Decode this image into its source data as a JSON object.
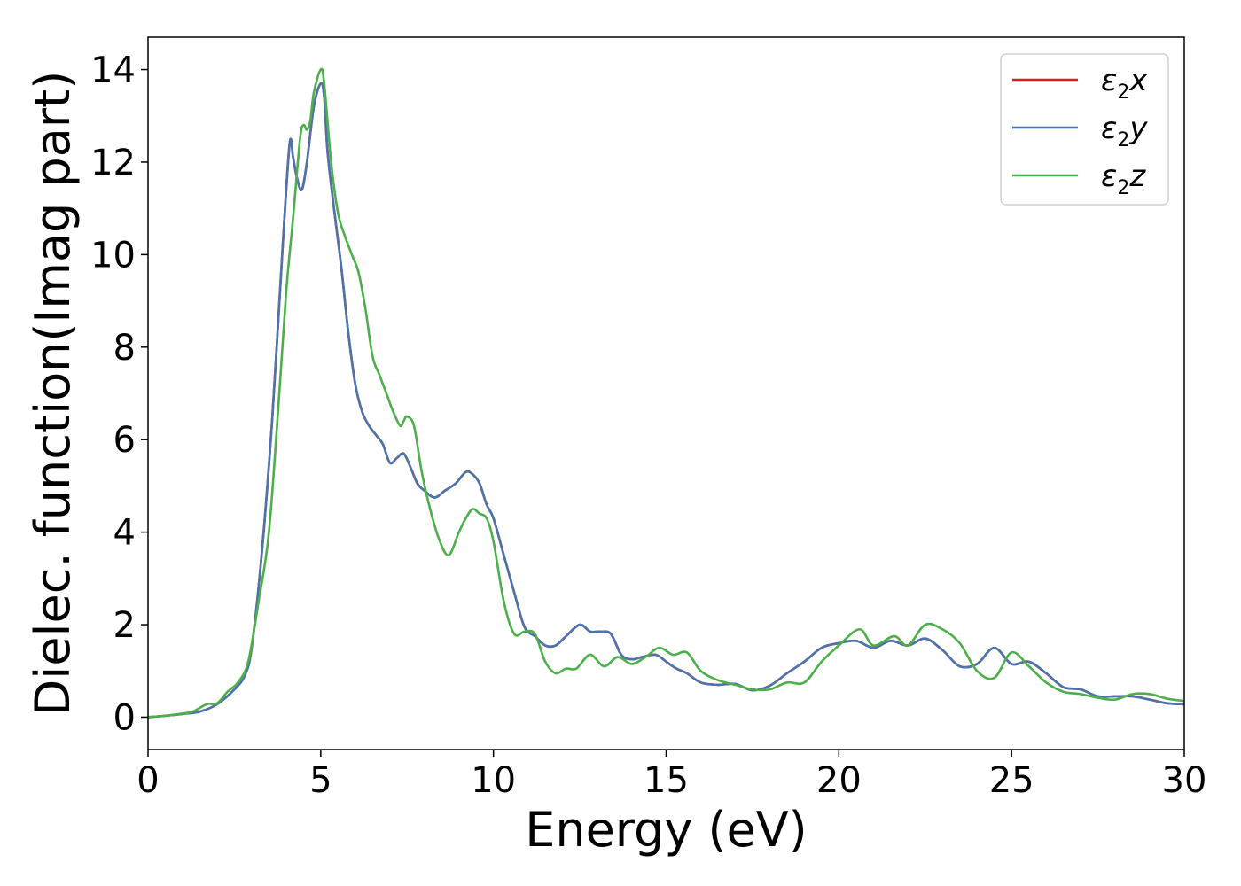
{
  "chart_data": {
    "type": "line",
    "xlabel": "Energy (eV)",
    "ylabel": "Dielec. function(Imag part)",
    "xlim": [
      0,
      30
    ],
    "ylim": [
      -0.7,
      14.7
    ],
    "x_ticks": [
      "0",
      "5",
      "10",
      "15",
      "20",
      "25",
      "30"
    ],
    "y_ticks": [
      "0",
      "2",
      "4",
      "6",
      "8",
      "10",
      "12",
      "14"
    ],
    "grid": false,
    "legend_position": "top-right",
    "series": [
      {
        "name": "ε2x",
        "legend": {
          "base": "ε",
          "sub": "2",
          "axis": "x"
        },
        "color": "#e41a1c",
        "x": [
          0,
          0.5,
          1,
          1.5,
          2,
          2.5,
          2.8,
          3,
          3.3,
          3.6,
          3.9,
          4.1,
          4.2,
          4.3,
          4.45,
          4.6,
          4.8,
          5.0,
          5.1,
          5.2,
          5.4,
          5.6,
          5.8,
          6,
          6.2,
          6.4,
          6.6,
          6.8,
          7,
          7.2,
          7.4,
          7.6,
          7.8,
          8,
          8.3,
          8.6,
          8.9,
          9.2,
          9.4,
          9.6,
          9.8,
          10,
          10.3,
          10.6,
          10.9,
          11.2,
          11.5,
          11.8,
          12.1,
          12.5,
          12.8,
          13.1,
          13.4,
          13.7,
          14,
          14.3,
          14.7,
          15,
          15.3,
          15.6,
          16,
          16.5,
          17,
          17.5,
          18,
          18.5,
          19,
          19.5,
          20,
          20.5,
          21,
          21.5,
          22,
          22.5,
          23,
          23.5,
          24,
          24.5,
          25,
          25.5,
          26,
          26.5,
          27,
          27.5,
          28,
          28.5,
          29,
          29.5,
          30
        ],
        "y": [
          0,
          0.03,
          0.07,
          0.12,
          0.28,
          0.6,
          0.9,
          1.5,
          3.6,
          6.5,
          10.2,
          12.4,
          12.1,
          11.7,
          11.4,
          12.0,
          13.2,
          13.7,
          13.4,
          12.2,
          10.9,
          9.7,
          8.3,
          7.2,
          6.6,
          6.3,
          6.1,
          5.9,
          5.5,
          5.6,
          5.7,
          5.4,
          5.05,
          4.9,
          4.75,
          4.9,
          5.05,
          5.3,
          5.25,
          5.05,
          4.6,
          4.3,
          3.5,
          2.7,
          1.95,
          1.75,
          1.55,
          1.55,
          1.75,
          2.0,
          1.85,
          1.85,
          1.8,
          1.35,
          1.25,
          1.3,
          1.35,
          1.2,
          1.05,
          0.95,
          0.75,
          0.7,
          0.72,
          0.58,
          0.68,
          0.95,
          1.2,
          1.5,
          1.6,
          1.65,
          1.5,
          1.65,
          1.55,
          1.7,
          1.45,
          1.1,
          1.15,
          1.5,
          1.15,
          1.2,
          0.95,
          0.65,
          0.6,
          0.45,
          0.45,
          0.45,
          0.38,
          0.3,
          0.28
        ]
      },
      {
        "name": "ε2y",
        "legend": {
          "base": "ε",
          "sub": "2",
          "axis": "y"
        },
        "color": "#4a74ad",
        "x": [
          0,
          0.5,
          1,
          1.5,
          2,
          2.5,
          2.8,
          3,
          3.3,
          3.6,
          3.9,
          4.1,
          4.2,
          4.3,
          4.45,
          4.6,
          4.8,
          5.0,
          5.1,
          5.2,
          5.4,
          5.6,
          5.8,
          6,
          6.2,
          6.4,
          6.6,
          6.8,
          7,
          7.2,
          7.4,
          7.6,
          7.8,
          8,
          8.3,
          8.6,
          8.9,
          9.2,
          9.4,
          9.6,
          9.8,
          10,
          10.3,
          10.6,
          10.9,
          11.2,
          11.5,
          11.8,
          12.1,
          12.5,
          12.8,
          13.1,
          13.4,
          13.7,
          14,
          14.3,
          14.7,
          15,
          15.3,
          15.6,
          16,
          16.5,
          17,
          17.5,
          18,
          18.5,
          19,
          19.5,
          20,
          20.5,
          21,
          21.5,
          22,
          22.5,
          23,
          23.5,
          24,
          24.5,
          25,
          25.5,
          26,
          26.5,
          27,
          27.5,
          28,
          28.5,
          29,
          29.5,
          30
        ],
        "y": [
          0,
          0.03,
          0.07,
          0.12,
          0.28,
          0.6,
          0.9,
          1.5,
          3.6,
          6.5,
          10.2,
          12.4,
          12.1,
          11.7,
          11.4,
          12.0,
          13.2,
          13.7,
          13.4,
          12.2,
          10.9,
          9.7,
          8.3,
          7.2,
          6.6,
          6.3,
          6.1,
          5.9,
          5.5,
          5.6,
          5.7,
          5.4,
          5.05,
          4.9,
          4.75,
          4.9,
          5.05,
          5.3,
          5.25,
          5.05,
          4.6,
          4.3,
          3.5,
          2.7,
          1.95,
          1.75,
          1.55,
          1.55,
          1.75,
          2.0,
          1.85,
          1.85,
          1.8,
          1.35,
          1.25,
          1.3,
          1.35,
          1.2,
          1.05,
          0.95,
          0.75,
          0.7,
          0.72,
          0.58,
          0.68,
          0.95,
          1.2,
          1.5,
          1.6,
          1.65,
          1.5,
          1.65,
          1.55,
          1.7,
          1.45,
          1.1,
          1.15,
          1.5,
          1.15,
          1.2,
          0.95,
          0.65,
          0.6,
          0.45,
          0.45,
          0.45,
          0.38,
          0.3,
          0.28
        ]
      },
      {
        "name": "ε2z",
        "legend": {
          "base": "ε",
          "sub": "2",
          "axis": "z"
        },
        "color": "#4daf4a",
        "x": [
          0,
          0.5,
          1,
          1.3,
          1.7,
          2,
          2.3,
          2.6,
          2.9,
          3.2,
          3.5,
          3.8,
          4.0,
          4.2,
          4.4,
          4.5,
          4.6,
          4.7,
          4.8,
          5.0,
          5.1,
          5.3,
          5.5,
          5.7,
          5.9,
          6.1,
          6.3,
          6.5,
          6.7,
          6.9,
          7.1,
          7.3,
          7.4,
          7.5,
          7.7,
          7.9,
          8.1,
          8.4,
          8.7,
          9,
          9.2,
          9.4,
          9.6,
          9.8,
          10,
          10.3,
          10.6,
          10.9,
          11.2,
          11.5,
          11.8,
          12.1,
          12.4,
          12.8,
          13.2,
          13.6,
          14,
          14.4,
          14.8,
          15.2,
          15.6,
          16,
          16.5,
          17,
          17.5,
          18,
          18.5,
          19,
          19.5,
          20,
          20.6,
          21,
          21.6,
          22,
          22.5,
          23,
          23.5,
          24,
          24.5,
          25,
          25.5,
          26,
          26.5,
          27,
          27.5,
          28,
          28.5,
          29,
          29.5,
          30
        ],
        "y": [
          0,
          0.03,
          0.08,
          0.12,
          0.28,
          0.3,
          0.55,
          0.75,
          1.2,
          2.5,
          4.0,
          7.0,
          9.2,
          10.8,
          12.5,
          12.8,
          12.7,
          12.9,
          13.5,
          14.0,
          13.7,
          12.0,
          10.9,
          10.4,
          10.0,
          9.6,
          8.8,
          7.8,
          7.4,
          7.0,
          6.6,
          6.3,
          6.4,
          6.5,
          6.3,
          5.4,
          4.7,
          3.9,
          3.5,
          4.0,
          4.3,
          4.5,
          4.4,
          4.3,
          3.8,
          2.5,
          1.8,
          1.85,
          1.8,
          1.2,
          0.95,
          1.05,
          1.05,
          1.35,
          1.1,
          1.3,
          1.15,
          1.3,
          1.5,
          1.35,
          1.4,
          1.0,
          0.8,
          0.7,
          0.6,
          0.6,
          0.75,
          0.75,
          1.2,
          1.55,
          1.9,
          1.55,
          1.75,
          1.55,
          2.0,
          1.9,
          1.6,
          1.0,
          0.85,
          1.4,
          1.1,
          0.75,
          0.55,
          0.5,
          0.42,
          0.38,
          0.5,
          0.5,
          0.4,
          0.35
        ]
      }
    ]
  }
}
